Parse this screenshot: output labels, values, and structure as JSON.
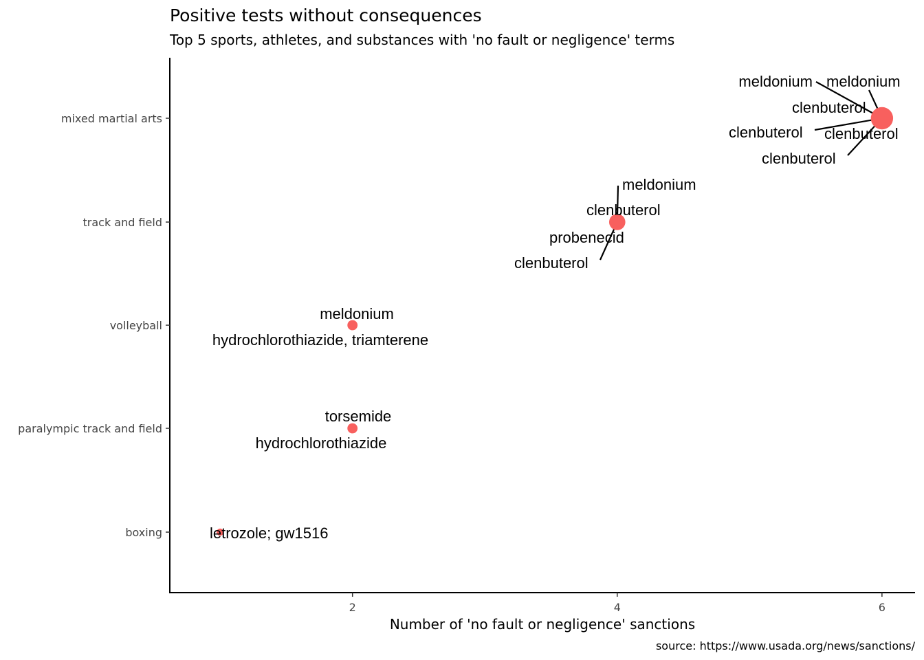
{
  "chart_data": {
    "type": "scatter",
    "title": "Positive tests without consequences",
    "subtitle": "Top 5 sports, athletes, and substances with 'no fault or negligence' terms",
    "caption": "source: https://www.usada.org/news/sanctions/",
    "xlabel": "Number of 'no fault or negligence' sanctions",
    "ylabel": "",
    "xlim": [
      0.62,
      6.25
    ],
    "x_ticks": [
      2,
      4,
      6
    ],
    "categories": [
      "boxing",
      "paralympic track and field",
      "volleyball",
      "track and field",
      "mixed martial arts"
    ],
    "point_color": "#F8605E",
    "grid": false,
    "points": [
      {
        "sport": "mixed martial arts",
        "n": 6
      },
      {
        "sport": "track and field",
        "n": 4
      },
      {
        "sport": "volleyball",
        "n": 2
      },
      {
        "sport": "paralympic track and field",
        "n": 2
      },
      {
        "sport": "boxing",
        "n": 1
      }
    ],
    "labels": [
      {
        "sport": "mixed martial arts",
        "text": "meldonium"
      },
      {
        "sport": "mixed martial arts",
        "text": "meldonium"
      },
      {
        "sport": "mixed martial arts",
        "text": "clenbuterol"
      },
      {
        "sport": "mixed martial arts",
        "text": "clenbuterol"
      },
      {
        "sport": "mixed martial arts",
        "text": "clenbuterol"
      },
      {
        "sport": "mixed martial arts",
        "text": "clenbuterol"
      },
      {
        "sport": "track and field",
        "text": "meldonium"
      },
      {
        "sport": "track and field",
        "text": "clenbuterol"
      },
      {
        "sport": "track and field",
        "text": "probenecid"
      },
      {
        "sport": "track and field",
        "text": "clenbuterol"
      },
      {
        "sport": "volleyball",
        "text": "meldonium"
      },
      {
        "sport": "volleyball",
        "text": "hydrochlorothiazide, triamterene"
      },
      {
        "sport": "paralympic track and field",
        "text": "torsemide"
      },
      {
        "sport": "paralympic track and field",
        "text": "hydrochlorothiazide"
      },
      {
        "sport": "boxing",
        "text": "letrozole; gw1516"
      }
    ]
  }
}
